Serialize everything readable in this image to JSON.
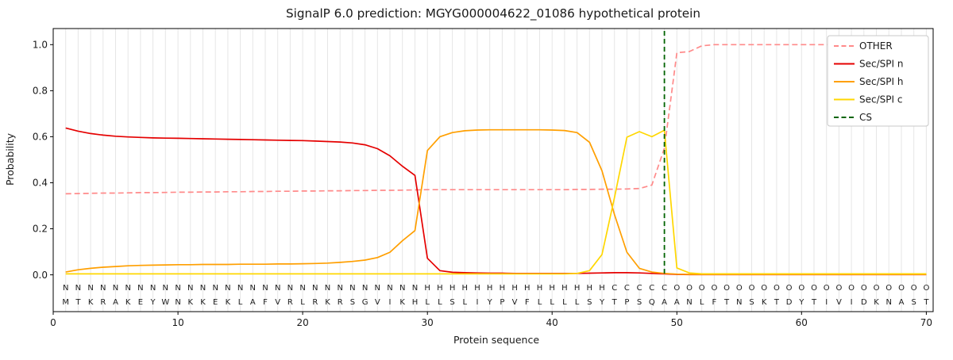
{
  "title": "SignalP 6.0 prediction: MGYG000004622_01086 hypothetical protein",
  "chart_data": {
    "type": "line",
    "title": "SignalP 6.0 prediction: MGYG000004622_01086 hypothetical protein",
    "xlabel": "Protein sequence",
    "ylabel": "Probability",
    "xlim": [
      0,
      70.55
    ],
    "ylim": [
      -0.16,
      1.07
    ],
    "yticks": [
      0.0,
      0.2,
      0.4,
      0.6,
      0.8,
      1.0
    ],
    "xticks": [
      0,
      10,
      20,
      30,
      40,
      50,
      60,
      70
    ],
    "grid": "vertical gridline at every residue",
    "legend_position": "upper right",
    "sequence": "MTKRAKEYWNKKEKLAFVRLRKRSGVIKHLLSLIYPVFLLLLSYTPSQAANLFTNSKTDYTIVIDKNAST",
    "region_labels": "NNNNNNNNNNNNNNNNNNNNNNNNNNNNNHHHHHHHHHHHHHHHCCCCCOOOOOOOOOOOOOOOOOOOOO",
    "region_colors": {
      "N": "#e50000",
      "H": "#ff9f00",
      "C": "#ffd700",
      "O": "#9b9b9b"
    },
    "sequence_color": "#1c1c1c",
    "grid_color": "#e6e6e6",
    "series": [
      {
        "name": "OTHER",
        "color": "#ff8a8a",
        "dash": true,
        "values": [
          0.352,
          0.353,
          0.354,
          0.355,
          0.355,
          0.356,
          0.357,
          0.357,
          0.358,
          0.359,
          0.359,
          0.36,
          0.36,
          0.361,
          0.361,
          0.362,
          0.362,
          0.363,
          0.363,
          0.364,
          0.364,
          0.365,
          0.365,
          0.366,
          0.366,
          0.367,
          0.367,
          0.368,
          0.369,
          0.37,
          0.37,
          0.37,
          0.37,
          0.37,
          0.37,
          0.37,
          0.37,
          0.37,
          0.37,
          0.37,
          0.37,
          0.371,
          0.371,
          0.372,
          0.372,
          0.373,
          0.375,
          0.39,
          0.55,
          0.965,
          0.97,
          0.995,
          1.0,
          1.0,
          1.0,
          1.0,
          1.0,
          1.0,
          1.0,
          1.0,
          1.0,
          1.0,
          1.0,
          1.0,
          1.0,
          1.0,
          1.0,
          1.0,
          1.0,
          1.0
        ]
      },
      {
        "name": "Sec/SPI n",
        "color": "#e50000",
        "dash": false,
        "values": [
          0.638,
          0.624,
          0.614,
          0.607,
          0.602,
          0.599,
          0.597,
          0.595,
          0.594,
          0.593,
          0.592,
          0.591,
          0.59,
          0.589,
          0.588,
          0.587,
          0.586,
          0.585,
          0.584,
          0.583,
          0.581,
          0.579,
          0.577,
          0.573,
          0.565,
          0.548,
          0.517,
          0.472,
          0.432,
          0.072,
          0.018,
          0.011,
          0.009,
          0.008,
          0.007,
          0.007,
          0.006,
          0.006,
          0.006,
          0.006,
          0.006,
          0.006,
          0.007,
          0.008,
          0.009,
          0.009,
          0.008,
          0.006,
          0.004,
          0.002,
          0.001,
          0.001,
          0.001,
          0.001,
          0.001,
          0.001,
          0.001,
          0.001,
          0.001,
          0.001,
          0.001,
          0.001,
          0.001,
          0.001,
          0.001,
          0.001,
          0.001,
          0.001,
          0.001,
          0.001
        ]
      },
      {
        "name": "Sec/SPI h",
        "color": "#ff9f00",
        "dash": false,
        "values": [
          0.012,
          0.022,
          0.028,
          0.033,
          0.036,
          0.039,
          0.041,
          0.042,
          0.043,
          0.044,
          0.044,
          0.045,
          0.045,
          0.045,
          0.046,
          0.046,
          0.046,
          0.047,
          0.047,
          0.048,
          0.049,
          0.051,
          0.054,
          0.058,
          0.064,
          0.075,
          0.098,
          0.148,
          0.192,
          0.54,
          0.6,
          0.618,
          0.626,
          0.629,
          0.63,
          0.63,
          0.63,
          0.63,
          0.63,
          0.629,
          0.627,
          0.618,
          0.576,
          0.452,
          0.262,
          0.098,
          0.028,
          0.012,
          0.006,
          0.003,
          0.002,
          0.002,
          0.002,
          0.002,
          0.002,
          0.002,
          0.002,
          0.002,
          0.002,
          0.002,
          0.002,
          0.002,
          0.002,
          0.002,
          0.002,
          0.002,
          0.002,
          0.002,
          0.002,
          0.002
        ]
      },
      {
        "name": "Sec/SPI c",
        "color": "#ffd700",
        "dash": false,
        "values": [
          0.004,
          0.004,
          0.004,
          0.004,
          0.004,
          0.004,
          0.004,
          0.004,
          0.004,
          0.004,
          0.004,
          0.004,
          0.004,
          0.004,
          0.004,
          0.004,
          0.004,
          0.004,
          0.004,
          0.004,
          0.004,
          0.004,
          0.004,
          0.004,
          0.004,
          0.004,
          0.004,
          0.004,
          0.004,
          0.004,
          0.004,
          0.004,
          0.004,
          0.004,
          0.004,
          0.004,
          0.004,
          0.004,
          0.004,
          0.004,
          0.004,
          0.006,
          0.018,
          0.088,
          0.335,
          0.598,
          0.622,
          0.6,
          0.628,
          0.03,
          0.008,
          0.004,
          0.004,
          0.004,
          0.004,
          0.004,
          0.004,
          0.004,
          0.004,
          0.004,
          0.004,
          0.004,
          0.004,
          0.004,
          0.004,
          0.004,
          0.004,
          0.004,
          0.004,
          0.004
        ]
      },
      {
        "name": "CS",
        "color": "#006400",
        "dash": true,
        "type": "vline",
        "x": 49
      }
    ]
  }
}
